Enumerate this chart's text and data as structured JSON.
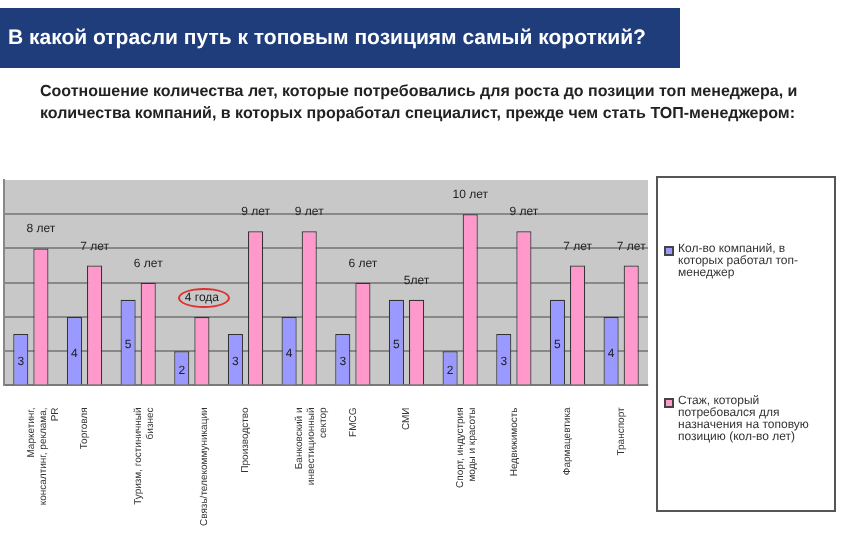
{
  "chart_data": {
    "type": "bar",
    "title": "В какой отрасли путь к топовым позициям самый короткий?",
    "subtitle": "Соотношение количества лет, которые потребовались для роста до позиции топ менеджера, и количества компаний, в которых проработал специалист, прежде чем стать ТОП-менеджером:",
    "categories": [
      "Маркетинг, консалтинг, реклама, PR",
      "Торговля",
      "Туризм, гостиничный бизнес",
      "Связь/телекоммуникации",
      "Производство",
      "Банковский и инвестиционный сектор",
      "FMCG",
      "СМИ",
      "Спорт, индустрия моды и красоты",
      "Недвижимость",
      "Фармацевтика",
      "Транспорт"
    ],
    "series": [
      {
        "name": "Кол-во компаний, в которых работал топ-менеджер",
        "color": "#9999ff",
        "values": [
          3,
          4,
          5,
          2,
          3,
          4,
          3,
          5,
          2,
          3,
          5,
          4
        ],
        "value_labels": [
          "3",
          "4",
          "5",
          "2",
          "3",
          "4",
          "3",
          "5",
          "2",
          "3",
          "5",
          "4"
        ]
      },
      {
        "name": "Стаж, который потребовался для назначения на топовую позицию (кол-во лет)",
        "color": "#ff99cc",
        "values": [
          8,
          7,
          6,
          4,
          9,
          9,
          6,
          5,
          10,
          9,
          7,
          7
        ],
        "value_labels": [
          "8 лет",
          "7 лет",
          "6 лет",
          null,
          "9 лет",
          "9 лет",
          "6 лет",
          "5лет",
          "10 лет",
          "9 лет",
          "7 лет",
          "7 лет"
        ]
      }
    ],
    "annotations": [
      {
        "text": "4 года",
        "x": "Связь/телекоммуникации",
        "y": 4
      }
    ],
    "ylim": [
      0,
      12
    ],
    "yticks": [
      {
        "value": 0,
        "label": null
      },
      {
        "value": 2,
        "label": null
      },
      {
        "value": 4,
        "label": null
      },
      {
        "value": 6,
        "label": null
      },
      {
        "value": 8,
        "label": null
      },
      {
        "value": 10,
        "label": null
      }
    ],
    "grid": "y",
    "tick_labels": "x",
    "legend": "right"
  }
}
